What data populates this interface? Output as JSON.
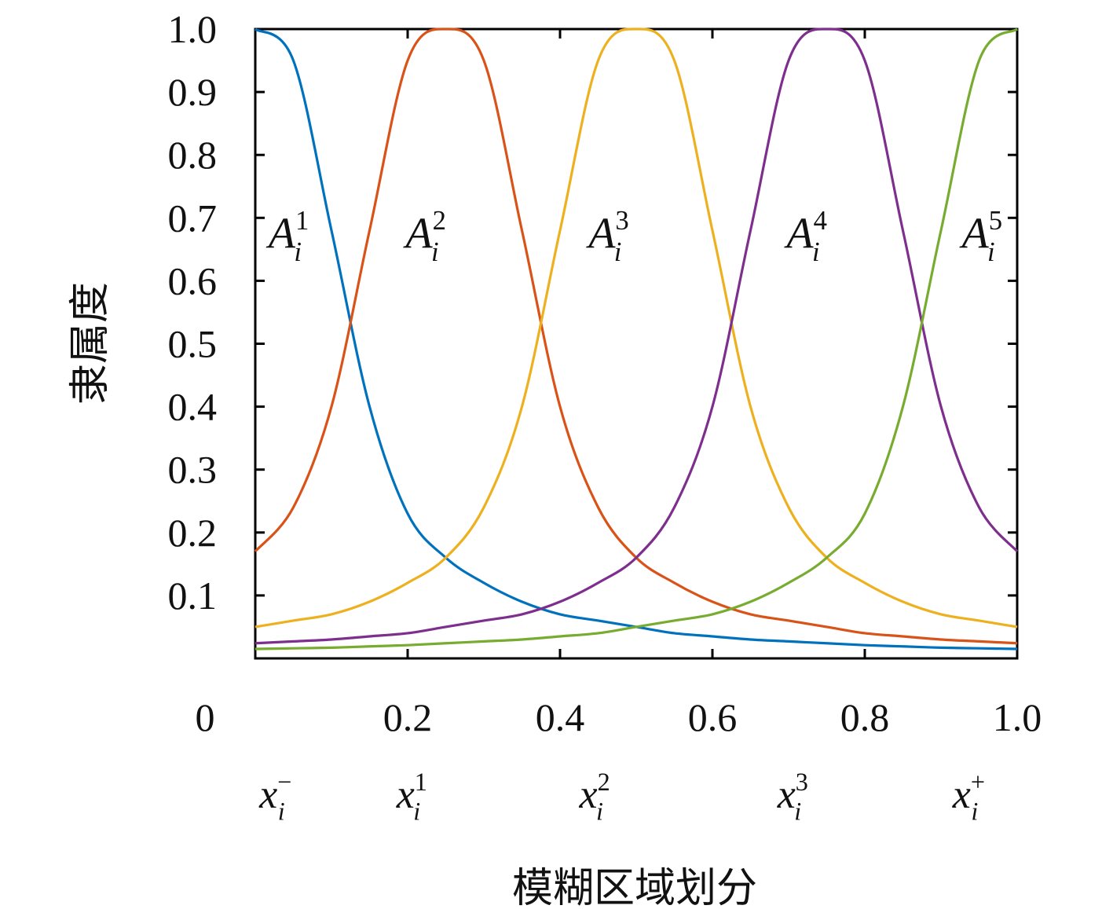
{
  "chart_data": {
    "type": "line",
    "title": "",
    "xlabel": "模糊区域划分",
    "ylabel": "隶属度",
    "xlim": [
      0,
      1.0
    ],
    "ylim": [
      0,
      1.0
    ],
    "grid": false,
    "x_ticks": [
      "0",
      "0.2",
      "0.4",
      "0.6",
      "0.8",
      "1.0"
    ],
    "y_ticks": [
      "0.1",
      "0.2",
      "0.3",
      "0.4",
      "0.5",
      "0.6",
      "0.7",
      "0.8",
      "0.9",
      "1.0"
    ],
    "x_partition_labels": [
      {
        "base": "x",
        "sub": "i",
        "sup": "−",
        "at": 0.03
      },
      {
        "base": "x",
        "sub": "i",
        "sup": "1",
        "at": 0.21
      },
      {
        "base": "x",
        "sub": "i",
        "sup": "2",
        "at": 0.45
      },
      {
        "base": "x",
        "sub": "i",
        "sup": "3",
        "at": 0.71
      },
      {
        "base": "x",
        "sub": "i",
        "sup": "+",
        "at": 0.94
      }
    ],
    "x": [
      0.0,
      0.05,
      0.1,
      0.15,
      0.2,
      0.25,
      0.3,
      0.35,
      0.4,
      0.45,
      0.5,
      0.55,
      0.6,
      0.65,
      0.7,
      0.75,
      0.8,
      0.85,
      0.9,
      0.95,
      1.0
    ],
    "series": [
      {
        "label": {
          "base": "A",
          "sub": "i",
          "sup": "1",
          "at_x": 0.04,
          "at_y": 0.68
        },
        "color": "#0072BD",
        "values": [
          1.0,
          0.95,
          0.68,
          0.4,
          0.23,
          0.16,
          0.12,
          0.09,
          0.07,
          0.06,
          0.05,
          0.04,
          0.035,
          0.03,
          0.027,
          0.024,
          0.021,
          0.019,
          0.017,
          0.016,
          0.015
        ]
      },
      {
        "label": {
          "base": "A",
          "sub": "i",
          "sup": "2",
          "at_x": 0.22,
          "at_y": 0.68
        },
        "color": "#D95319",
        "values": [
          0.17,
          0.24,
          0.4,
          0.68,
          0.95,
          1.0,
          0.95,
          0.68,
          0.4,
          0.24,
          0.16,
          0.12,
          0.09,
          0.07,
          0.06,
          0.05,
          0.04,
          0.035,
          0.03,
          0.027,
          0.024
        ]
      },
      {
        "label": {
          "base": "A",
          "sub": "i",
          "sup": "3",
          "at_x": 0.46,
          "at_y": 0.68
        },
        "color": "#EDB120",
        "values": [
          0.05,
          0.06,
          0.07,
          0.09,
          0.12,
          0.16,
          0.24,
          0.4,
          0.68,
          0.95,
          1.0,
          0.95,
          0.68,
          0.4,
          0.24,
          0.16,
          0.12,
          0.09,
          0.07,
          0.06,
          0.05
        ]
      },
      {
        "label": {
          "base": "A",
          "sub": "i",
          "sup": "4",
          "at_x": 0.72,
          "at_y": 0.68
        },
        "color": "#7E2F8E",
        "values": [
          0.024,
          0.027,
          0.03,
          0.035,
          0.04,
          0.05,
          0.06,
          0.07,
          0.09,
          0.12,
          0.16,
          0.24,
          0.4,
          0.68,
          0.95,
          1.0,
          0.95,
          0.68,
          0.4,
          0.24,
          0.17
        ]
      },
      {
        "label": {
          "base": "A",
          "sub": "i",
          "sup": "5",
          "at_x": 0.95,
          "at_y": 0.68
        },
        "color": "#77AC30",
        "values": [
          0.015,
          0.016,
          0.017,
          0.019,
          0.021,
          0.024,
          0.027,
          0.03,
          0.035,
          0.04,
          0.05,
          0.06,
          0.07,
          0.09,
          0.12,
          0.16,
          0.23,
          0.4,
          0.68,
          0.95,
          1.0
        ]
      }
    ]
  }
}
